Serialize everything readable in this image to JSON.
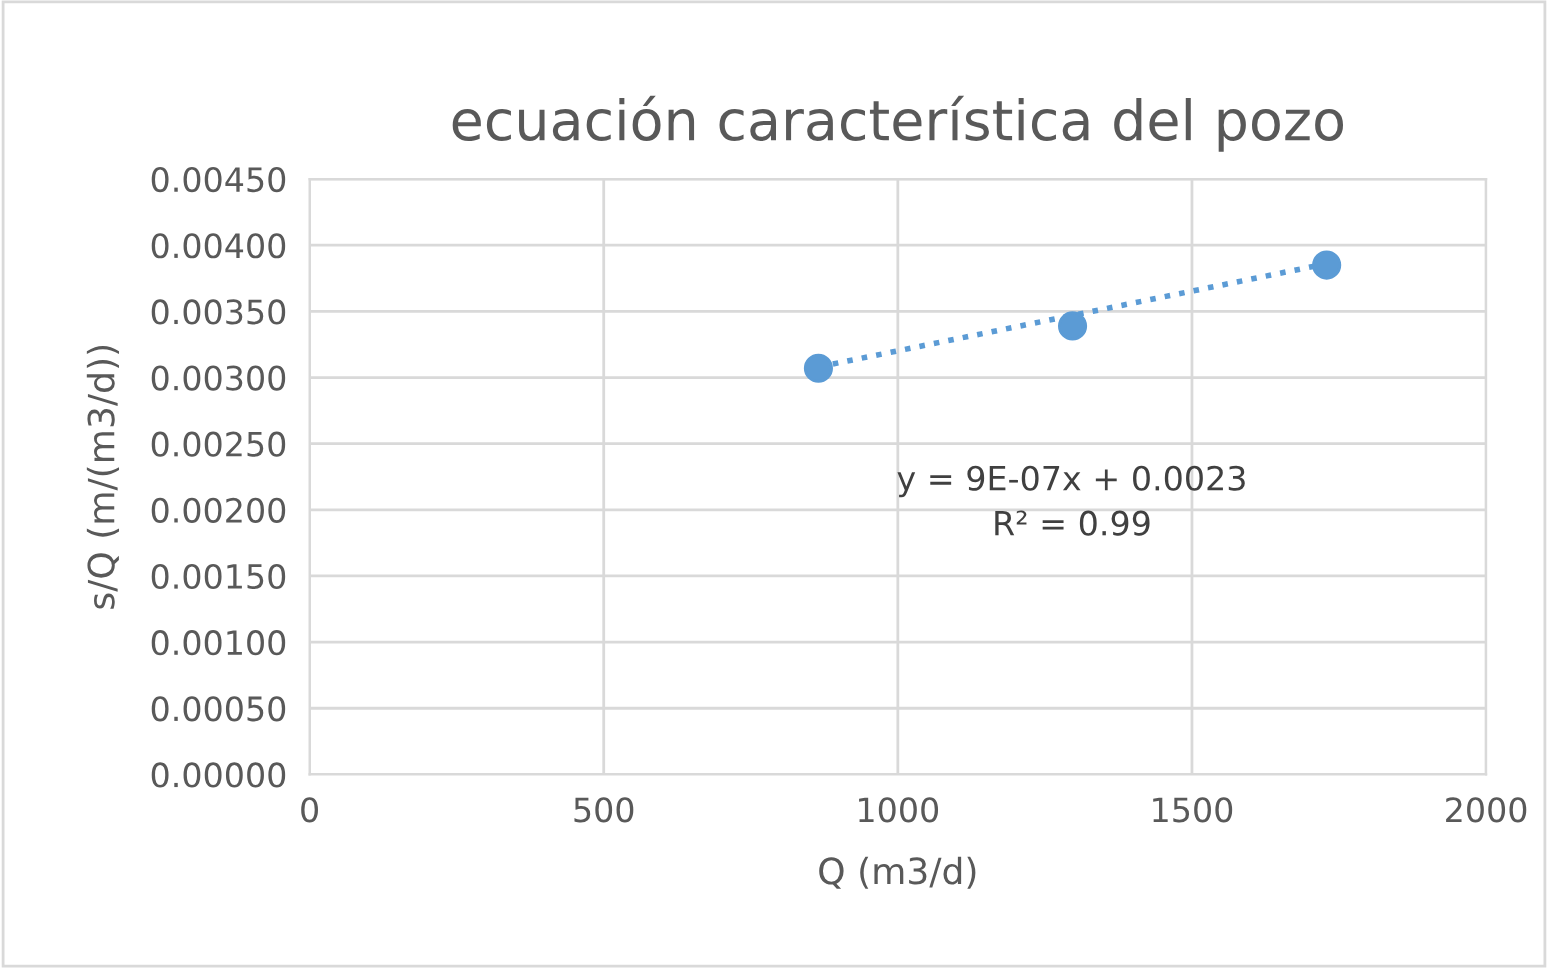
{
  "chart_data": {
    "type": "scatter",
    "title": "ecuación característica del pozo",
    "xlabel": "Q (m3/d)",
    "ylabel": "s/Q (m/(m3/d))",
    "series": [
      {
        "color": "#5b9bd5",
        "x": [
          865,
          1297,
          1729
        ],
        "values": [
          0.00307,
          0.00339,
          0.00385
        ],
        "marker": "circle"
      },
      {
        "type": "line",
        "color": "#5b9bd5",
        "x": [
          865,
          1729
        ],
        "values": [
          0.00308,
          0.00386
        ],
        "line_style": "dotted"
      }
    ],
    "annotations": [
      "y = 9E-07x + 0.0023\nR² = 0.99"
    ],
    "xlim": [
      0,
      2000
    ],
    "xticks": [
      0,
      500,
      1000,
      1500,
      2000
    ],
    "ylim": [
      0,
      0.0045
    ],
    "yticks": [
      {
        "value": 0,
        "label": "0.00000"
      },
      {
        "value": 0.0005,
        "label": "0.00050"
      },
      {
        "value": 0.001,
        "label": "0.00100"
      },
      {
        "value": 0.0015,
        "label": "0.00150"
      },
      {
        "value": 0.002,
        "label": "0.00200"
      },
      {
        "value": 0.0025,
        "label": "0.00250"
      },
      {
        "value": 0.003,
        "label": "0.00300"
      },
      {
        "value": 0.0035,
        "label": "0.00350"
      },
      {
        "value": 0.004,
        "label": "0.00400"
      },
      {
        "value": 0.0045,
        "label": "0.00450"
      }
    ],
    "grid": true
  }
}
